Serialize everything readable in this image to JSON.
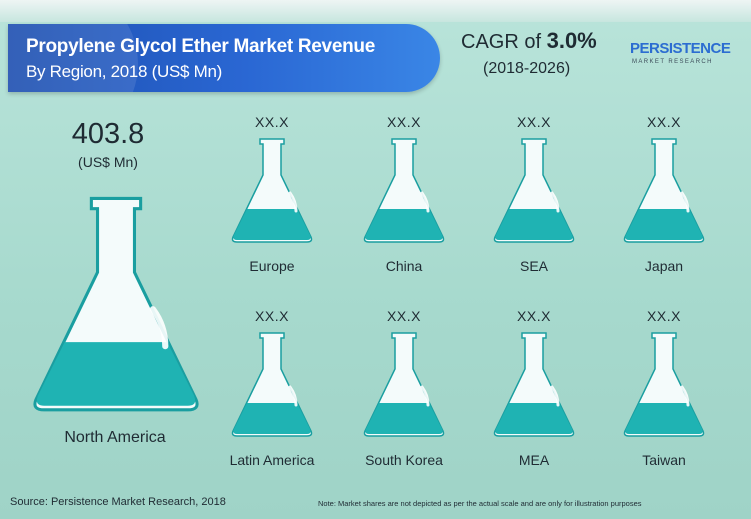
{
  "header": {
    "title": "Propylene Glycol Ether Market Revenue",
    "subtitle": "By Region, 2018 (US$ Mn)",
    "cagr_prefix": "CAGR of",
    "cagr_value": "3.0%",
    "cagr_period": "(2018-2026)"
  },
  "logo": {
    "name": "PERSISTENCE",
    "tagline": "MARKET RESEARCH"
  },
  "colors": {
    "background": "#a7dbcf",
    "flask_liquid": "#1fb3b3",
    "flask_glass": "#f4fbfb",
    "banner": "#2a67d3"
  },
  "chart_data": {
    "type": "table",
    "featured": {
      "region": "North America",
      "value": 403.8,
      "value_label": "403.8",
      "unit": "(US$ Mn)"
    },
    "regions": [
      {
        "name": "Europe",
        "value_label": "XX.X"
      },
      {
        "name": "China",
        "value_label": "XX.X"
      },
      {
        "name": "SEA",
        "value_label": "XX.X"
      },
      {
        "name": "Japan",
        "value_label": "XX.X"
      },
      {
        "name": "Latin America",
        "value_label": "XX.X"
      },
      {
        "name": "South Korea",
        "value_label": "XX.X"
      },
      {
        "name": "MEA",
        "value_label": "XX.X"
      },
      {
        "name": "Taiwan",
        "value_label": "XX.X"
      }
    ]
  },
  "footer": {
    "source": "Source: Persistence Market Research, 2018",
    "note": "Note: Market shares are not depicted as per the actual scale and are only for illustration purposes"
  }
}
